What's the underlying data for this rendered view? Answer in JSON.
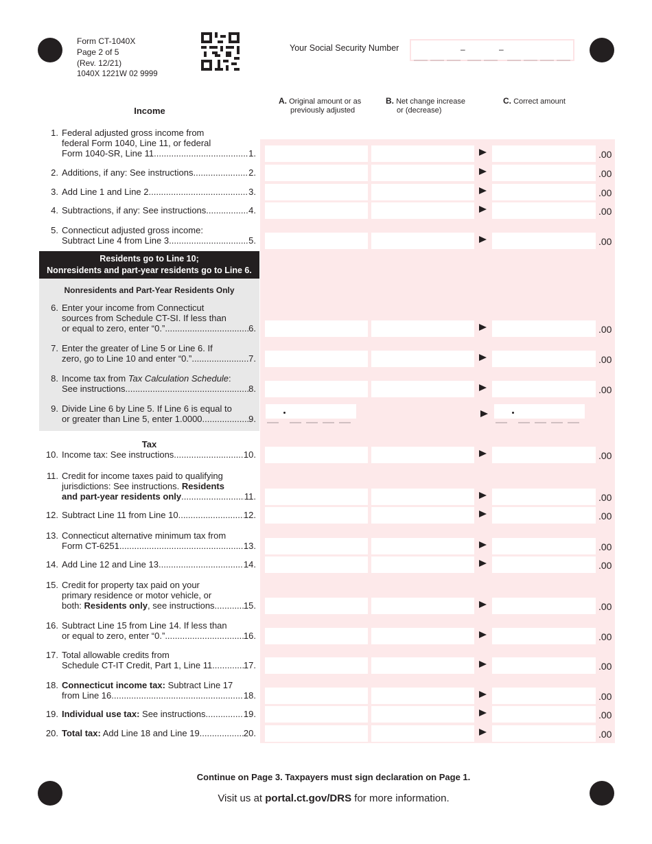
{
  "header": {
    "form": "Form CT-1040X",
    "page": "Page 2 of 5",
    "rev": "(Rev. 12/21)",
    "code": "1040X 1221W 02 9999",
    "ssn_label": "Your Social Security Number",
    "ssn_sep": "–"
  },
  "columns": {
    "a_letter": "A.",
    "a_label_1": "Original amount or as",
    "a_label_2": "previously adjusted",
    "b_letter": "B.",
    "b_label_1": "Net change increase",
    "b_label_2": "or (decrease)",
    "c_letter": "C.",
    "c_label": "Correct amount"
  },
  "sections": {
    "income": "Income",
    "banner_1": "Residents go to Line 10;",
    "banner_2": "Nonresidents and part-year residents go to Line 6.",
    "nonres": "Nonresidents and Part-Year Residents Only",
    "tax": "Tax"
  },
  "cents": ".00",
  "colors": {
    "field_bg": "#fde9ea",
    "section_gray": "#e8e8e8",
    "banner": "#231f20"
  },
  "lines": [
    {
      "num": "1.",
      "lines": [
        [
          {
            "t": "Federal adjusted gross income from"
          }
        ],
        [
          {
            "t": "federal Form 1040, Line 11, or federal"
          }
        ],
        [
          {
            "t": "Form 1040-SR, Line 11"
          }
        ]
      ],
      "ref": "1."
    },
    {
      "num": "2.",
      "lines": [
        [
          {
            "t": "Additions, if any: See instructions. "
          }
        ]
      ],
      "ref": "2."
    },
    {
      "num": "3.",
      "lines": [
        [
          {
            "t": "Add Line 1 and Line 2."
          }
        ]
      ],
      "ref": "3."
    },
    {
      "num": "4.",
      "lines": [
        [
          {
            "t": "Subtractions, if any: See instructions. "
          }
        ]
      ],
      "ref": "4."
    },
    {
      "num": "5.",
      "lines": [
        [
          {
            "t": "Connecticut adjusted gross income:"
          }
        ],
        [
          {
            "t": "Subtract Line 4 from Line 3. "
          }
        ]
      ],
      "ref": "5."
    },
    {
      "num": "6.",
      "lines": [
        [
          {
            "t": "Enter your income from Connecticut"
          }
        ],
        [
          {
            "t": "sources from Schedule CT-SI. If less than"
          }
        ],
        [
          {
            "t": "or equal to zero, enter “0.” "
          }
        ]
      ],
      "ref": "6."
    },
    {
      "num": "7.",
      "lines": [
        [
          {
            "t": "Enter the greater of Line 5 or Line 6. If"
          }
        ],
        [
          {
            "t": "zero, go to Line 10 and enter “0.” "
          }
        ]
      ],
      "ref": "7."
    },
    {
      "num": "8.",
      "lines": [
        [
          {
            "t": "Income tax from "
          },
          {
            "t": "Tax Calculation Schedule",
            "i": true
          },
          {
            "t": ":"
          }
        ],
        [
          {
            "t": "See instructions. "
          }
        ]
      ],
      "ref": "8."
    },
    {
      "num": "9.",
      "lines": [
        [
          {
            "t": "Divide Line 6 by Line 5. If Line 6 is equal to"
          }
        ],
        [
          {
            "t": "or greater than Line 5, enter 1.0000. "
          }
        ]
      ],
      "ref": "9."
    },
    {
      "num": "10.",
      "lines": [
        [
          {
            "t": "Income tax: See instructions. "
          }
        ]
      ],
      "ref": "10."
    },
    {
      "num": "11.",
      "lines": [
        [
          {
            "t": "Credit for income taxes paid to qualifying"
          }
        ],
        [
          {
            "t": "jurisdictions: See instructions. "
          },
          {
            "t": "Residents",
            "b": true
          }
        ],
        [
          {
            "t": "and part-year residents only ",
            "b": true
          }
        ]
      ],
      "ref": "11."
    },
    {
      "num": "12.",
      "lines": [
        [
          {
            "t": "Subtract Line 11 from Line 10"
          }
        ]
      ],
      "ref": "12."
    },
    {
      "num": "13.",
      "lines": [
        [
          {
            "t": "Connecticut alternative minimum tax from"
          }
        ],
        [
          {
            "t": "Form CT-6251"
          }
        ]
      ],
      "ref": "13."
    },
    {
      "num": "14.",
      "lines": [
        [
          {
            "t": "Add Line 12 and Line 13."
          }
        ]
      ],
      "ref": "14."
    },
    {
      "num": "15.",
      "lines": [
        [
          {
            "t": "Credit for property tax paid on your"
          }
        ],
        [
          {
            "t": "primary residence or motor vehicle, or"
          }
        ],
        [
          {
            "t": "both: "
          },
          {
            "t": "Residents only",
            "b": true
          },
          {
            "t": ", see instructions.  "
          }
        ]
      ],
      "ref": "15."
    },
    {
      "num": "16.",
      "lines": [
        [
          {
            "t": "Subtract Line 15 from Line 14. If less than"
          }
        ],
        [
          {
            "t": "or equal to zero, enter “0.” "
          }
        ]
      ],
      "ref": "16."
    },
    {
      "num": "17.",
      "lines": [
        [
          {
            "t": "Total allowable credits from"
          }
        ],
        [
          {
            "t": "Schedule CT-IT Credit, Part 1, Line 11"
          }
        ]
      ],
      "ref": "17."
    },
    {
      "num": "18.",
      "lines": [
        [
          {
            "t": "Connecticut income tax:",
            "b": true
          },
          {
            "t": " Subtract Line 17"
          }
        ],
        [
          {
            "t": "from Line 16."
          }
        ]
      ],
      "ref": "18."
    },
    {
      "num": "19.",
      "lines": [
        [
          {
            "t": "Individual use tax:",
            "b": true
          },
          {
            "t": " See instructions. "
          }
        ]
      ],
      "ref": "19."
    },
    {
      "num": "20.",
      "lines": [
        [
          {
            "t": "Total tax:",
            "b": true
          },
          {
            "t": " Add Line 18 and Line 19."
          }
        ]
      ],
      "ref": "20."
    }
  ],
  "footer": {
    "continue": "Continue on Page 3. Taxpayers must sign declaration on Page 1.",
    "visit_pre": "Visit us at ",
    "visit_link": "portal.ct.gov/DRS",
    "visit_post": " for more information."
  }
}
